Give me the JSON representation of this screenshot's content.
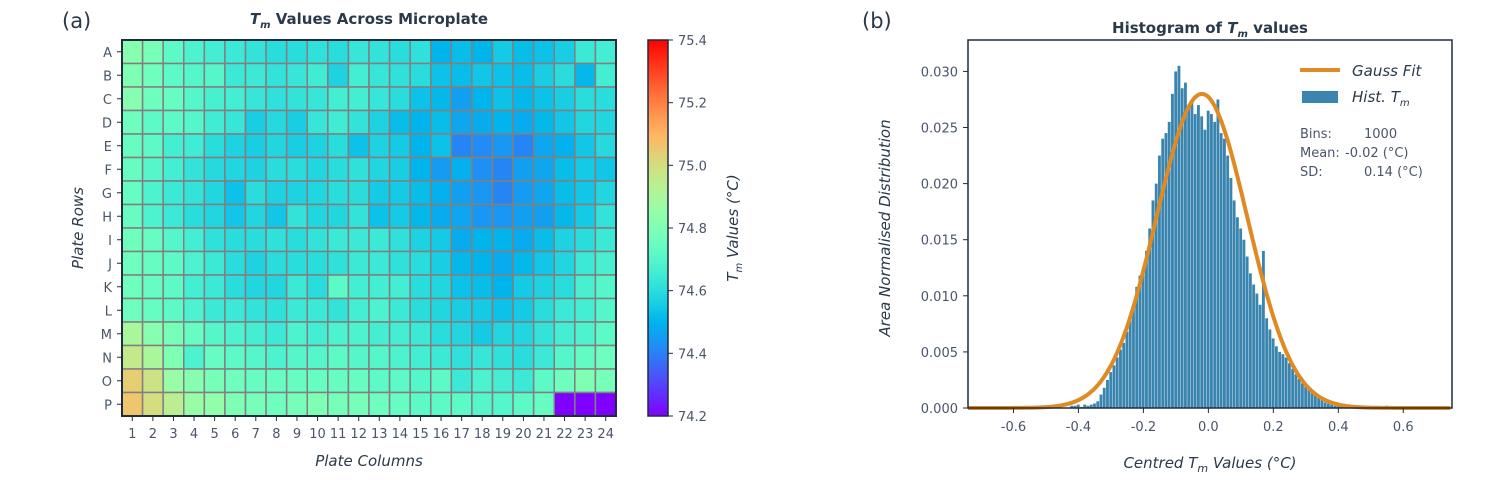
{
  "chart_data": [
    {
      "type": "heatmap",
      "panel_label": "(a)",
      "title": "T_m Values Across Microplate",
      "title_parts": {
        "t": "T",
        "sub": "m",
        "rest": " Values Across Microplate"
      },
      "xlabel": "Plate Columns",
      "ylabel": "Plate Rows",
      "colorbar_label": "T_m Values (°C)",
      "colorbar_label_parts": {
        "t": "T",
        "sub": "m",
        "rest": " Values (°C)"
      },
      "colormap": "rainbow",
      "color_range": [
        74.2,
        75.4
      ],
      "colorbar_ticks": [
        "74.2",
        "74.4",
        "74.6",
        "74.8",
        "75.0",
        "75.2",
        "75.4"
      ],
      "rows": [
        "A",
        "B",
        "C",
        "D",
        "E",
        "F",
        "G",
        "H",
        "I",
        "J",
        "K",
        "L",
        "M",
        "N",
        "O",
        "P"
      ],
      "columns": [
        "1",
        "2",
        "3",
        "4",
        "5",
        "6",
        "7",
        "8",
        "9",
        "10",
        "11",
        "12",
        "13",
        "14",
        "15",
        "16",
        "17",
        "18",
        "19",
        "20",
        "21",
        "22",
        "23",
        "24"
      ],
      "values": [
        [
          74.82,
          74.78,
          74.72,
          74.68,
          74.66,
          74.64,
          74.62,
          74.6,
          74.6,
          74.61,
          74.6,
          74.63,
          74.62,
          74.6,
          74.61,
          74.5,
          74.52,
          74.5,
          74.55,
          74.52,
          74.53,
          74.56,
          74.64,
          74.66
        ],
        [
          74.8,
          74.76,
          74.72,
          74.7,
          74.7,
          74.64,
          74.64,
          74.62,
          74.63,
          74.65,
          74.57,
          74.66,
          74.63,
          74.61,
          74.6,
          74.53,
          74.52,
          74.54,
          74.53,
          74.52,
          74.56,
          74.6,
          74.51,
          74.66
        ],
        [
          74.82,
          74.76,
          74.74,
          74.7,
          74.67,
          74.66,
          74.63,
          74.61,
          74.62,
          74.63,
          74.66,
          74.66,
          74.63,
          74.6,
          74.53,
          74.51,
          74.46,
          74.5,
          74.53,
          74.51,
          74.53,
          74.56,
          74.6,
          74.6
        ],
        [
          74.76,
          74.72,
          74.72,
          74.7,
          74.65,
          74.63,
          74.56,
          74.59,
          74.56,
          74.63,
          74.65,
          74.62,
          74.57,
          74.52,
          74.5,
          74.52,
          74.47,
          74.48,
          74.5,
          74.48,
          74.51,
          74.54,
          74.58,
          74.58
        ],
        [
          74.74,
          74.72,
          74.66,
          74.65,
          74.6,
          74.57,
          74.56,
          74.58,
          74.56,
          74.57,
          74.6,
          74.53,
          74.57,
          74.55,
          74.5,
          74.53,
          74.41,
          74.42,
          74.44,
          74.41,
          74.47,
          74.49,
          74.54,
          74.59
        ],
        [
          74.74,
          74.7,
          74.66,
          74.62,
          74.59,
          74.58,
          74.57,
          74.6,
          74.6,
          74.58,
          74.6,
          74.61,
          74.58,
          74.56,
          74.5,
          74.45,
          74.49,
          74.43,
          74.41,
          74.46,
          74.47,
          74.52,
          74.55,
          74.54
        ],
        [
          74.74,
          74.68,
          74.64,
          74.62,
          74.58,
          74.53,
          74.6,
          74.57,
          74.57,
          74.58,
          74.6,
          74.6,
          74.55,
          74.55,
          74.52,
          74.49,
          74.46,
          74.44,
          74.41,
          74.45,
          74.47,
          74.52,
          74.54,
          74.58
        ],
        [
          74.74,
          74.68,
          74.64,
          74.6,
          74.58,
          74.54,
          74.58,
          74.54,
          74.62,
          74.58,
          74.58,
          74.62,
          74.53,
          74.55,
          74.51,
          74.48,
          74.47,
          74.44,
          74.44,
          74.46,
          74.46,
          74.51,
          74.55,
          74.62
        ],
        [
          74.76,
          74.74,
          74.7,
          74.66,
          74.61,
          74.6,
          74.6,
          74.61,
          74.6,
          74.62,
          74.64,
          74.64,
          74.64,
          74.61,
          74.57,
          74.55,
          74.48,
          74.5,
          74.5,
          74.48,
          74.52,
          74.57,
          74.6,
          74.64
        ],
        [
          74.76,
          74.74,
          74.72,
          74.68,
          74.64,
          74.6,
          74.57,
          74.6,
          74.6,
          74.6,
          74.61,
          74.64,
          74.64,
          74.61,
          74.6,
          74.56,
          74.51,
          74.5,
          74.48,
          74.51,
          74.54,
          74.58,
          74.64,
          74.67
        ],
        [
          74.76,
          74.74,
          74.72,
          74.66,
          74.64,
          74.6,
          74.58,
          74.58,
          74.64,
          74.6,
          74.72,
          74.66,
          74.66,
          74.66,
          74.6,
          74.58,
          74.53,
          74.52,
          74.5,
          74.55,
          74.57,
          74.6,
          74.67,
          74.7
        ],
        [
          74.76,
          74.74,
          74.72,
          74.68,
          74.64,
          74.64,
          74.62,
          74.61,
          74.64,
          74.64,
          74.62,
          74.66,
          74.68,
          74.64,
          74.6,
          74.58,
          74.56,
          74.55,
          74.53,
          74.55,
          74.6,
          74.64,
          74.66,
          74.7
        ],
        [
          74.9,
          74.82,
          74.78,
          74.74,
          74.7,
          74.68,
          74.66,
          74.64,
          74.68,
          74.66,
          74.68,
          74.68,
          74.66,
          74.66,
          74.64,
          74.6,
          74.58,
          74.55,
          74.58,
          74.58,
          74.62,
          74.66,
          74.68,
          74.72
        ],
        [
          74.96,
          74.9,
          74.8,
          74.68,
          74.74,
          74.72,
          74.7,
          74.68,
          74.7,
          74.7,
          74.72,
          74.7,
          74.7,
          74.68,
          74.66,
          74.64,
          74.61,
          74.63,
          74.61,
          74.6,
          74.64,
          74.7,
          74.73,
          74.76
        ],
        [
          75.04,
          74.98,
          74.86,
          74.82,
          74.78,
          74.76,
          74.74,
          74.74,
          74.74,
          74.74,
          74.74,
          74.74,
          74.72,
          74.72,
          74.7,
          74.72,
          74.64,
          74.68,
          74.66,
          74.64,
          74.72,
          74.76,
          74.8,
          74.78
        ],
        [
          75.06,
          75.0,
          74.94,
          74.86,
          74.84,
          74.8,
          74.78,
          74.76,
          74.78,
          74.8,
          74.78,
          74.78,
          74.76,
          74.74,
          74.72,
          74.72,
          74.72,
          74.7,
          74.7,
          74.72,
          74.74,
          74.2,
          74.2,
          74.2
        ]
      ]
    },
    {
      "type": "bar",
      "subtype": "histogram",
      "panel_label": "(b)",
      "title": "Histogram of T_m values",
      "title_parts": {
        "pre": "Histogram of ",
        "t": "T",
        "sub": "m",
        "rest": " values"
      },
      "xlabel": "Centred T_m Values (°C)",
      "xlabel_parts": {
        "pre": "Centred ",
        "t": "T",
        "sub": "m",
        "rest": " Values (°C)"
      },
      "ylabel": "Area Normalised Distribution",
      "xlim": [
        -0.74,
        0.75
      ],
      "ylim": [
        0,
        0.0328
      ],
      "xticks": [
        "-0.6",
        "-0.4",
        "-0.2",
        "0.0",
        "0.2",
        "0.4",
        "0.6"
      ],
      "yticks": [
        "0.000",
        "0.005",
        "0.010",
        "0.015",
        "0.020",
        "0.025",
        "0.030"
      ],
      "legend": {
        "placement": "top-right",
        "entries": [
          {
            "label": "Gauss Fit",
            "color": "#e08a24"
          },
          {
            "label": "Hist. T_m",
            "label_pre": "Hist. ",
            "t": "T",
            "sub": "m",
            "color": "#3a85b0"
          }
        ]
      },
      "stats": [
        {
          "key": "Bins:",
          "value": "1000"
        },
        {
          "key": "Mean:",
          "value": "-0.02 (°C)"
        },
        {
          "key": "SD:",
          "value": "0.14 (°C)"
        }
      ],
      "gauss_fit": {
        "mean": -0.02,
        "sd": 0.14,
        "peak": 0.028
      },
      "bin_width": 0.01,
      "bins": [
        [
          -0.42,
          0.0002
        ],
        [
          -0.41,
          0.0002
        ],
        [
          -0.4,
          0.0003
        ],
        [
          -0.39,
          0.0001
        ],
        [
          -0.38,
          0.0003
        ],
        [
          -0.37,
          0.0002
        ],
        [
          -0.36,
          0.0003
        ],
        [
          -0.35,
          0.0004
        ],
        [
          -0.34,
          0.0006
        ],
        [
          -0.33,
          0.0012
        ],
        [
          -0.32,
          0.0018
        ],
        [
          -0.31,
          0.0025
        ],
        [
          -0.3,
          0.0032
        ],
        [
          -0.29,
          0.0038
        ],
        [
          -0.28,
          0.0045
        ],
        [
          -0.27,
          0.0052
        ],
        [
          -0.26,
          0.0058
        ],
        [
          -0.25,
          0.0068
        ],
        [
          -0.24,
          0.0078
        ],
        [
          -0.23,
          0.009
        ],
        [
          -0.22,
          0.0108
        ],
        [
          -0.21,
          0.0118
        ],
        [
          -0.2,
          0.0125
        ],
        [
          -0.19,
          0.014
        ],
        [
          -0.18,
          0.016
        ],
        [
          -0.17,
          0.0185
        ],
        [
          -0.16,
          0.02
        ],
        [
          -0.15,
          0.0225
        ],
        [
          -0.14,
          0.024
        ],
        [
          -0.13,
          0.0245
        ],
        [
          -0.12,
          0.0255
        ],
        [
          -0.11,
          0.028
        ],
        [
          -0.1,
          0.03
        ],
        [
          -0.09,
          0.0305
        ],
        [
          -0.08,
          0.0285
        ],
        [
          -0.07,
          0.029
        ],
        [
          -0.06,
          0.027
        ],
        [
          -0.05,
          0.0275
        ],
        [
          -0.04,
          0.0262
        ],
        [
          -0.03,
          0.027
        ],
        [
          -0.02,
          0.026
        ],
        [
          -0.01,
          0.0248
        ],
        [
          0.0,
          0.0265
        ],
        [
          0.01,
          0.0262
        ],
        [
          0.02,
          0.0255
        ],
        [
          0.03,
          0.0275
        ],
        [
          0.04,
          0.0245
        ],
        [
          0.05,
          0.024
        ],
        [
          0.06,
          0.0225
        ],
        [
          0.07,
          0.0205
        ],
        [
          0.08,
          0.0185
        ],
        [
          0.09,
          0.017
        ],
        [
          0.1,
          0.016
        ],
        [
          0.11,
          0.015
        ],
        [
          0.12,
          0.0135
        ],
        [
          0.13,
          0.012
        ],
        [
          0.14,
          0.011
        ],
        [
          0.15,
          0.0102
        ],
        [
          0.16,
          0.0092
        ],
        [
          0.17,
          0.014
        ],
        [
          0.18,
          0.008
        ],
        [
          0.19,
          0.007
        ],
        [
          0.2,
          0.0062
        ],
        [
          0.21,
          0.0055
        ],
        [
          0.22,
          0.005
        ],
        [
          0.23,
          0.0048
        ],
        [
          0.24,
          0.0045
        ],
        [
          0.25,
          0.004
        ],
        [
          0.26,
          0.0035
        ],
        [
          0.27,
          0.003
        ],
        [
          0.28,
          0.0026
        ],
        [
          0.29,
          0.0022
        ],
        [
          0.3,
          0.0019
        ],
        [
          0.31,
          0.0016
        ],
        [
          0.32,
          0.0013
        ],
        [
          0.33,
          0.0011
        ],
        [
          0.34,
          0.0009
        ],
        [
          0.35,
          0.0007
        ],
        [
          0.36,
          0.0005
        ],
        [
          0.37,
          0.0004
        ],
        [
          0.38,
          0.0003
        ],
        [
          0.39,
          0.0002
        ],
        [
          0.4,
          0.0002
        ],
        [
          0.41,
          0.0001
        ],
        [
          0.42,
          0.0001
        ],
        [
          0.55,
          0.0002
        ],
        [
          0.6,
          0.0001
        ]
      ]
    }
  ]
}
